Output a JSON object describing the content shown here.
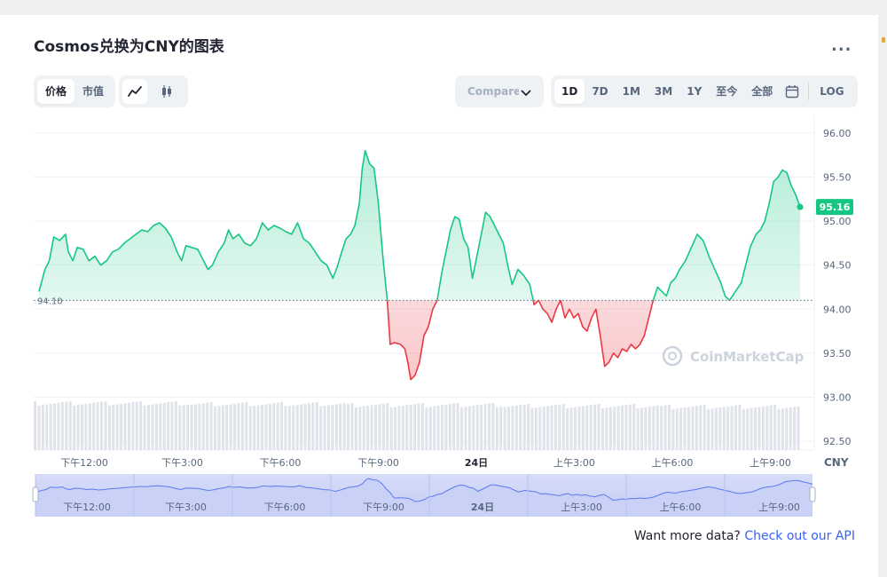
{
  "title": "Cosmos兑换为CNY的图表",
  "more_label": "...",
  "metric_toggle": [
    "价格",
    "市值"
  ],
  "chart_type_icons": [
    "line-chart-icon",
    "candlestick-icon"
  ],
  "compare_label": "Compare with",
  "ranges": [
    "1D",
    "7D",
    "1M",
    "3M",
    "1Y",
    "至今",
    "全部"
  ],
  "log_label": "LOG",
  "cta_text": "Want more data?",
  "cta_link": "Check out our API",
  "watermark": "CoinMarketCap",
  "colors": {
    "up": "#16c784",
    "down": "#ea3943",
    "accent": "#3861fb"
  },
  "chart_data": {
    "type": "line",
    "currency_label": "CNY",
    "baseline": 94.1,
    "baseline_label": "94.10",
    "current_price": 95.16,
    "current_price_label": "95.16",
    "ylim": [
      92.4,
      96.2
    ],
    "y_ticks": [
      "96.00",
      "95.50",
      "95.00",
      "94.50",
      "94.00",
      "93.50",
      "93.00",
      "92.50"
    ],
    "y_tick_values": [
      96.0,
      95.5,
      95.0,
      94.5,
      94.0,
      93.5,
      93.0,
      92.5
    ],
    "x_ticks": [
      "下午12:00",
      "下午3:00",
      "下午6:00",
      "下午9:00",
      "24日",
      "上午3:00",
      "上午6:00",
      "上午9:00"
    ],
    "x_tick_hours": [
      2,
      5,
      8,
      11,
      14,
      17,
      20,
      23
    ],
    "x_range_hours": [
      0,
      24.2
    ],
    "series": [
      {
        "points": [
          [
            0.0,
            94.2
          ],
          [
            0.2,
            94.45
          ],
          [
            0.35,
            94.55
          ],
          [
            0.5,
            94.82
          ],
          [
            0.7,
            94.78
          ],
          [
            0.9,
            94.85
          ],
          [
            1.0,
            94.65
          ],
          [
            1.15,
            94.55
          ],
          [
            1.3,
            94.7
          ],
          [
            1.5,
            94.68
          ],
          [
            1.7,
            94.55
          ],
          [
            1.9,
            94.6
          ],
          [
            2.1,
            94.5
          ],
          [
            2.3,
            94.55
          ],
          [
            2.5,
            94.65
          ],
          [
            2.7,
            94.68
          ],
          [
            2.9,
            94.75
          ],
          [
            3.1,
            94.8
          ],
          [
            3.3,
            94.85
          ],
          [
            3.5,
            94.9
          ],
          [
            3.7,
            94.88
          ],
          [
            3.9,
            94.95
          ],
          [
            4.1,
            94.98
          ],
          [
            4.3,
            94.92
          ],
          [
            4.5,
            94.82
          ],
          [
            4.7,
            94.65
          ],
          [
            4.85,
            94.55
          ],
          [
            5.0,
            94.72
          ],
          [
            5.2,
            94.7
          ],
          [
            5.4,
            94.68
          ],
          [
            5.6,
            94.55
          ],
          [
            5.75,
            94.45
          ],
          [
            5.9,
            94.5
          ],
          [
            6.1,
            94.65
          ],
          [
            6.3,
            94.75
          ],
          [
            6.45,
            94.9
          ],
          [
            6.6,
            94.8
          ],
          [
            6.8,
            94.85
          ],
          [
            7.0,
            94.75
          ],
          [
            7.2,
            94.72
          ],
          [
            7.4,
            94.8
          ],
          [
            7.6,
            94.98
          ],
          [
            7.8,
            94.9
          ],
          [
            8.0,
            94.95
          ],
          [
            8.2,
            94.92
          ],
          [
            8.4,
            94.88
          ],
          [
            8.6,
            94.85
          ],
          [
            8.8,
            94.98
          ],
          [
            9.0,
            94.8
          ],
          [
            9.2,
            94.75
          ],
          [
            9.4,
            94.65
          ],
          [
            9.6,
            94.55
          ],
          [
            9.8,
            94.5
          ],
          [
            10.0,
            94.35
          ],
          [
            10.15,
            94.48
          ],
          [
            10.3,
            94.65
          ],
          [
            10.45,
            94.8
          ],
          [
            10.6,
            94.85
          ],
          [
            10.75,
            94.95
          ],
          [
            10.9,
            95.2
          ],
          [
            11.0,
            95.6
          ],
          [
            11.1,
            95.8
          ],
          [
            11.25,
            95.65
          ],
          [
            11.4,
            95.6
          ],
          [
            11.55,
            95.2
          ],
          [
            11.7,
            94.6
          ],
          [
            11.85,
            94.1
          ],
          [
            11.95,
            93.6
          ],
          [
            12.1,
            93.62
          ],
          [
            12.3,
            93.6
          ],
          [
            12.45,
            93.55
          ],
          [
            12.55,
            93.4
          ],
          [
            12.65,
            93.2
          ],
          [
            12.8,
            93.25
          ],
          [
            12.95,
            93.4
          ],
          [
            13.1,
            93.7
          ],
          [
            13.25,
            93.8
          ],
          [
            13.4,
            94.0
          ],
          [
            13.55,
            94.1
          ],
          [
            13.7,
            94.4
          ],
          [
            13.85,
            94.65
          ],
          [
            14.0,
            94.9
          ],
          [
            14.15,
            95.05
          ],
          [
            14.3,
            95.02
          ],
          [
            14.45,
            94.8
          ],
          [
            14.6,
            94.7
          ],
          [
            14.75,
            94.35
          ],
          [
            14.9,
            94.6
          ],
          [
            15.05,
            94.85
          ],
          [
            15.2,
            95.1
          ],
          [
            15.35,
            95.05
          ],
          [
            15.5,
            94.95
          ],
          [
            15.65,
            94.85
          ],
          [
            15.8,
            94.75
          ],
          [
            15.95,
            94.5
          ],
          [
            16.1,
            94.28
          ],
          [
            16.3,
            94.45
          ],
          [
            16.5,
            94.38
          ],
          [
            16.7,
            94.28
          ],
          [
            16.85,
            94.05
          ],
          [
            17.0,
            94.1
          ],
          [
            17.15,
            94.0
          ],
          [
            17.3,
            93.95
          ],
          [
            17.45,
            93.85
          ],
          [
            17.6,
            94.0
          ],
          [
            17.75,
            94.1
          ],
          [
            17.9,
            93.9
          ],
          [
            18.05,
            94.0
          ],
          [
            18.2,
            93.9
          ],
          [
            18.35,
            93.95
          ],
          [
            18.5,
            93.8
          ],
          [
            18.65,
            93.75
          ],
          [
            18.8,
            93.9
          ],
          [
            18.95,
            94.0
          ],
          [
            19.1,
            93.7
          ],
          [
            19.25,
            93.35
          ],
          [
            19.4,
            93.4
          ],
          [
            19.55,
            93.5
          ],
          [
            19.7,
            93.45
          ],
          [
            19.85,
            93.55
          ],
          [
            20.0,
            93.52
          ],
          [
            20.15,
            93.6
          ],
          [
            20.3,
            93.55
          ],
          [
            20.45,
            93.6
          ],
          [
            20.6,
            93.7
          ],
          [
            20.75,
            93.9
          ],
          [
            20.9,
            94.1
          ],
          [
            21.05,
            94.25
          ],
          [
            21.2,
            94.2
          ],
          [
            21.35,
            94.15
          ],
          [
            21.5,
            94.3
          ],
          [
            21.65,
            94.35
          ],
          [
            21.8,
            94.45
          ],
          [
            22.0,
            94.55
          ],
          [
            22.2,
            94.7
          ],
          [
            22.4,
            94.85
          ],
          [
            22.6,
            94.78
          ],
          [
            22.8,
            94.6
          ],
          [
            23.0,
            94.45
          ],
          [
            23.2,
            94.3
          ],
          [
            23.35,
            94.15
          ],
          [
            23.5,
            94.1
          ],
          [
            23.7,
            94.2
          ],
          [
            23.9,
            94.3
          ],
          [
            24.05,
            94.5
          ],
          [
            24.2,
            94.7
          ],
          [
            24.4,
            94.85
          ],
          [
            24.55,
            94.9
          ],
          [
            24.7,
            95.0
          ],
          [
            24.85,
            95.2
          ],
          [
            25.0,
            95.45
          ],
          [
            25.15,
            95.5
          ],
          [
            25.3,
            95.58
          ],
          [
            25.45,
            95.55
          ],
          [
            25.6,
            95.4
          ],
          [
            25.75,
            95.3
          ],
          [
            25.9,
            95.16
          ]
        ]
      }
    ],
    "volume_bar_count": 196
  }
}
